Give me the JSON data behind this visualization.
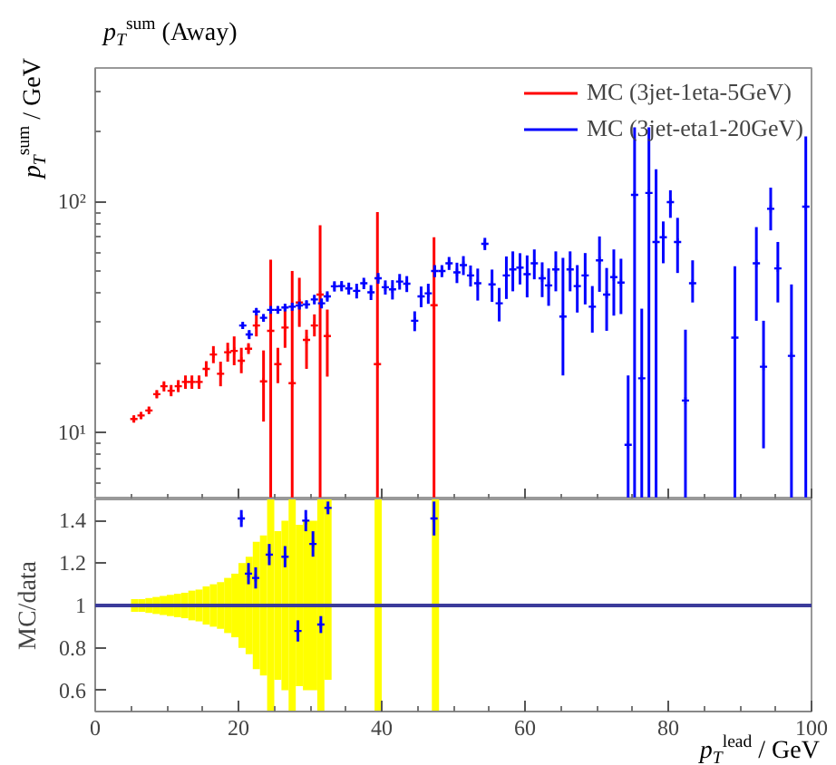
{
  "chart_data": [
    {
      "type": "scatter",
      "title": "p$_{T}$$^{sum}$ (Away)",
      "ylabel": "p$_{T}$$^{sum}$ / GeV",
      "log": "y",
      "xlim": [
        0,
        100
      ],
      "ylim": [
        5.1,
        380
      ],
      "xticks": [
        0,
        {
          "value": 5,
          "label": null
        },
        {
          "value": 10,
          "label": null
        },
        {
          "value": 15,
          "label": null
        },
        20,
        {
          "value": 25,
          "label": null
        },
        {
          "value": 30,
          "label": null
        },
        {
          "value": 35,
          "label": null
        },
        40,
        {
          "value": 45,
          "label": null
        },
        {
          "value": 50,
          "label": null
        },
        {
          "value": 55,
          "label": null
        },
        60,
        {
          "value": 65,
          "label": null
        },
        {
          "value": 70,
          "label": null
        },
        {
          "value": 75,
          "label": null
        },
        80,
        {
          "value": 85,
          "label": null
        },
        {
          "value": 90,
          "label": null
        },
        {
          "value": 95,
          "label": null
        },
        100
      ],
      "yticks": [
        {
          "value": 6,
          "label": null
        },
        {
          "value": 7,
          "label": null
        },
        {
          "value": 8,
          "label": null
        },
        {
          "value": 9,
          "label": null
        },
        {
          "value": 10,
          "label": "10¹"
        },
        {
          "value": 20,
          "label": null
        },
        {
          "value": 30,
          "label": null
        },
        {
          "value": 40,
          "label": null
        },
        {
          "value": 50,
          "label": null
        },
        {
          "value": 60,
          "label": null
        },
        {
          "value": 70,
          "label": null
        },
        {
          "value": 80,
          "label": null
        },
        {
          "value": 90,
          "label": null
        },
        {
          "value": 100,
          "label": "10²"
        },
        {
          "value": 200,
          "label": null
        },
        {
          "value": 300,
          "label": null
        }
      ],
      "tick_labels": "y",
      "legend": "top right",
      "marker": "cross",
      "series": [
        {
          "name": "MC (3jet-1eta-5GeV)",
          "color": "#ff0000",
          "x": [
            5.4,
            6.4,
            7.5,
            8.6,
            9.6,
            10.6,
            11.6,
            12.6,
            13.5,
            14.5,
            15.5,
            16.5,
            17.5,
            18.5,
            19.4,
            20.4,
            21.4,
            22.5,
            23.5,
            24.5,
            25.5,
            26.5,
            27.5,
            28.5,
            29.5,
            30.6,
            31.4,
            32.4,
            39.4,
            47.3
          ],
          "values": [
            11.4,
            11.8,
            12.4,
            14.6,
            15.8,
            15.1,
            15.8,
            16.5,
            16.5,
            16.5,
            18.8,
            21.7,
            17.9,
            22.2,
            22.5,
            20.4,
            23.0,
            29.0,
            16.6,
            27.5,
            19.7,
            28.4,
            16.3,
            36.5,
            25.1,
            29.0,
            39.5,
            26.1,
            19.7,
            35.5
          ],
          "errors": [
            [
              11.0,
              11.8
            ],
            [
              11.4,
              12.2
            ],
            [
              12.0,
              12.9
            ],
            [
              14.0,
              15.2
            ],
            [
              15.0,
              16.6
            ],
            [
              14.3,
              16.0
            ],
            [
              14.9,
              16.8
            ],
            [
              15.4,
              17.6
            ],
            [
              15.4,
              17.6
            ],
            [
              15.4,
              17.6
            ],
            [
              17.4,
              20.3
            ],
            [
              19.9,
              23.6
            ],
            [
              15.8,
              20.2
            ],
            [
              20.2,
              24.4
            ],
            [
              19.5,
              26.0
            ],
            [
              18.0,
              23.2
            ],
            [
              21.8,
              24.3
            ],
            [
              26.0,
              32.4
            ],
            [
              11.1,
              22.6
            ],
            [
              5.2,
              56
            ],
            [
              16.3,
              23.2
            ],
            [
              23.2,
              34.4
            ],
            [
              5.2,
              50
            ],
            [
              28.6,
              46.7
            ],
            [
              18.8,
              27.8
            ],
            [
              26.0,
              32.4
            ],
            [
              5.2,
              79
            ],
            [
              17.4,
              34.0
            ],
            [
              5.2,
              90
            ],
            [
              5.2,
              70
            ]
          ]
        },
        {
          "name": "MC (3jet-eta1-20GeV)",
          "color": "#0000ff",
          "x": [
            20.6,
            21.5,
            22.5,
            23.5,
            24.5,
            25.5,
            26.5,
            27.5,
            28.5,
            29.5,
            30.6,
            31.6,
            32.4,
            33.4,
            34.4,
            35.4,
            36.5,
            37.5,
            38.5,
            39.5,
            40.5,
            41.5,
            42.5,
            43.5,
            44.6,
            45.5,
            46.5,
            47.4,
            48.4,
            49.4,
            50.5,
            51.4,
            52.4,
            53.4,
            54.4,
            55.4,
            56.4,
            57.4,
            58.3,
            59.3,
            60.3,
            61.3,
            62.4,
            63.3,
            64.3,
            65.3,
            66.3,
            67.3,
            68.4,
            69.4,
            70.4,
            71.4,
            72.4,
            73.4,
            74.4,
            75.3,
            76.3,
            77.3,
            78.3,
            79.3,
            80.3,
            81.3,
            82.4,
            83.4,
            89.3,
            92.3,
            93.3,
            94.3,
            95.3,
            97.2,
            99.2
          ],
          "values": [
            29.0,
            26.5,
            33.3,
            31.3,
            33.9,
            33.9,
            34.7,
            35.0,
            35.4,
            35.8,
            37.6,
            36.2,
            38.8,
            42.9,
            43.0,
            42.0,
            41.0,
            44.2,
            40.4,
            46.5,
            42.5,
            41.6,
            45.0,
            44.0,
            30.4,
            38.8,
            40.0,
            50.0,
            50.0,
            54.0,
            49.3,
            53.0,
            47.8,
            44.2,
            65.6,
            43.7,
            36.2,
            47.8,
            50.8,
            51.7,
            48.4,
            54.0,
            46.5,
            43.3,
            50.8,
            31.7,
            50.8,
            43.0,
            47.8,
            35.0,
            55.6,
            39.5,
            47.0,
            44.5,
            8.8,
            107,
            17.1,
            109,
            66.8,
            70,
            99.5,
            66.8,
            13.7,
            44.2,
            25.7,
            54,
            19.2,
            93,
            51.3,
            21.4,
            95
          ],
          "errors": [
            1.0,
            1.2,
            1.2,
            1.2,
            1.3,
            1.3,
            1.3,
            1.4,
            1.4,
            1.5,
            1.8,
            1.8,
            2.0,
            2.2,
            2.2,
            2.5,
            3,
            2.5,
            3,
            2.5,
            3,
            4,
            3.5,
            3.5,
            3,
            4,
            4,
            3,
            3,
            3.5,
            5,
            5,
            5,
            7,
            4,
            7,
            6,
            10,
            10,
            8,
            10,
            8,
            8,
            8,
            10,
            [
              17.6,
              57
            ],
            10,
            10,
            12,
            8,
            15,
            12,
            15,
            12,
            [
              5.2,
              17.6
            ],
            [
              5.2,
              210
            ],
            [
              5.2,
              34.3
            ],
            [
              5.2,
              210
            ],
            [
              5.2,
              138
            ],
            [
              54,
              82
            ],
            [
              85,
              112
            ],
            [
              49,
              85
            ],
            [
              5.2,
              27.8
            ],
            [
              36.5,
              55.6
            ],
            [
              5.2,
              52.4
            ],
            [
              30.4,
              77.5
            ],
            [
              8.5,
              30.4
            ],
            [
              75,
              115
            ],
            [
              36.5,
              66.8
            ],
            [
              5.2,
              43.7
            ],
            [
              5.2,
              192
            ]
          ]
        }
      ]
    },
    {
      "type": "scatter",
      "xlabel": "p$_{T}$$^{lead}$ / GeV",
      "ylabel": "MC/data",
      "xlim": [
        0,
        100
      ],
      "ylim": [
        0.5,
        1.5
      ],
      "xticks": [
        0,
        {
          "value": 5,
          "label": null
        },
        {
          "value": 10,
          "label": null
        },
        {
          "value": 15,
          "label": null
        },
        20,
        {
          "value": 25,
          "label": null
        },
        {
          "value": 30,
          "label": null
        },
        {
          "value": 35,
          "label": null
        },
        40,
        {
          "value": 45,
          "label": null
        },
        {
          "value": 50,
          "label": null
        },
        {
          "value": 55,
          "label": null
        },
        60,
        {
          "value": 65,
          "label": null
        },
        {
          "value": 70,
          "label": null
        },
        {
          "value": 75,
          "label": null
        },
        80,
        {
          "value": 85,
          "label": null
        },
        {
          "value": 90,
          "label": null
        },
        {
          "value": 95,
          "label": null
        },
        100
      ],
      "yticks": [
        0.6,
        0.8,
        1,
        1.2,
        1.4
      ],
      "marker": "cross",
      "ref_lines": [
        {
          "axis": "y",
          "value": 1,
          "color": "#3b3b9b"
        }
      ],
      "series": [
        {
          "type": "bar",
          "color": "#ffff00",
          "x": [
            5.5,
            6.5,
            7.5,
            8.5,
            9.5,
            10.5,
            11.5,
            12.5,
            13.5,
            14.5,
            15.5,
            16.5,
            17.5,
            18.5,
            19.5,
            20.5,
            21.5,
            22.5,
            23.5,
            24.5,
            25.5,
            26.5,
            27.5,
            28.5,
            29.5,
            30.5,
            31.5,
            32.5,
            39.5,
            47.5
          ],
          "base": [
            0.97,
            0.97,
            0.965,
            0.96,
            0.955,
            0.95,
            0.945,
            0.94,
            0.93,
            0.925,
            0.91,
            0.9,
            0.89,
            0.87,
            0.85,
            0.8,
            0.77,
            0.7,
            0.67,
            0.5,
            0.65,
            0.6,
            0.5,
            0.62,
            0.6,
            0.6,
            0.5,
            0.65,
            0.5,
            0.5
          ],
          "values": [
            0.06,
            0.06,
            0.07,
            0.08,
            0.09,
            0.1,
            0.11,
            0.12,
            0.14,
            0.15,
            0.18,
            0.2,
            0.22,
            0.26,
            0.3,
            0.4,
            0.46,
            0.6,
            0.66,
            1,
            0.7,
            0.8,
            1,
            0.76,
            0.8,
            0.8,
            1,
            0.85,
            1,
            1
          ]
        },
        {
          "color": "#0000ff",
          "x": [
            20.4,
            21.4,
            22.4,
            24.3,
            26.5,
            28.3,
            29.4,
            30.4,
            31.5,
            32.5,
            47.3
          ],
          "values": [
            1.41,
            1.15,
            1.13,
            1.24,
            1.23,
            0.88,
            1.4,
            1.29,
            0.91,
            1.46,
            1.41
          ],
          "errors": [
            0.04,
            0.05,
            0.05,
            0.05,
            0.05,
            0.05,
            0.05,
            0.06,
            0.04,
            [
              1.43,
              1.49
            ],
            0.08
          ]
        }
      ]
    }
  ]
}
